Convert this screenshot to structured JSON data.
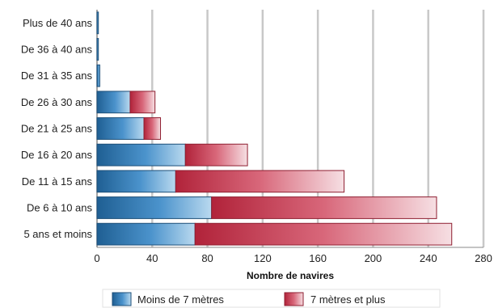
{
  "chart_data": {
    "type": "bar",
    "orientation": "horizontal",
    "stacked": true,
    "categories": [
      "Plus de 40 ans",
      "De 36 à 40 ans",
      "De 31 à 35 ans",
      "De 26 à 30 ans",
      "De 21 à 25 ans",
      "De 16 à 20 ans",
      "De 11 à 15 ans",
      "De 6 à 10 ans",
      "5 ans et moins"
    ],
    "series": [
      {
        "name": "Moins de 7 mètres",
        "values": [
          1,
          1,
          2,
          24,
          34,
          64,
          57,
          83,
          71
        ],
        "color": "#2f79b5"
      },
      {
        "name": "7 mètres et plus",
        "values": [
          0,
          0,
          0,
          18,
          12,
          45,
          122,
          163,
          186
        ],
        "color": "#c83a4e"
      }
    ],
    "xlabel": "Nombre de navires",
    "ylabel": "",
    "xlim": [
      0,
      280
    ],
    "xticks": [
      "0",
      "40",
      "80",
      "120",
      "160",
      "200",
      "240",
      "280"
    ],
    "grid": true,
    "legend_position": "bottom"
  }
}
